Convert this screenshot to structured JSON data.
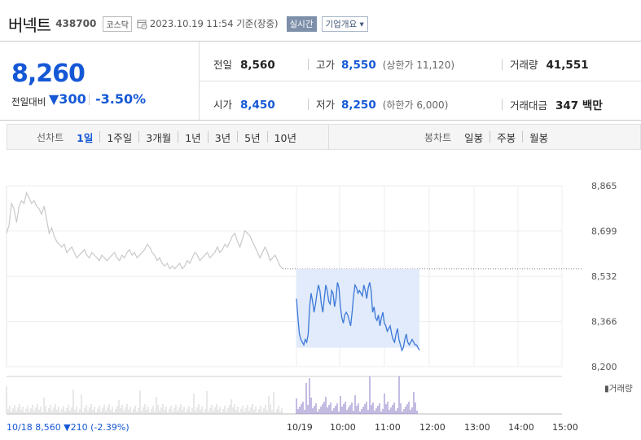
{
  "header": {
    "stock_name": "버넥트",
    "stock_code": "438700",
    "market": "코스닥",
    "datetime": "2023.10.19 11:54 기준(장중)",
    "realtime_label": "실시간",
    "company_label": "기업개요 ▾"
  },
  "price": {
    "current": "8,260",
    "diff_label": "전일대비",
    "diff_value": "▼300",
    "diff_percent": "-3.50%"
  },
  "stats": {
    "prev_close_label": "전일",
    "prev_close": "8,560",
    "high_label": "고가",
    "high": "8,550",
    "upper_limit": "(상한가 11,120)",
    "volume_label": "거래량",
    "volume": "41,551",
    "open_label": "시가",
    "open": "8,450",
    "low_label": "저가",
    "low": "8,250",
    "lower_limit": "(하한가 6,000)",
    "amount_label": "거래대금",
    "amount": "347 백만"
  },
  "line_chart_tabs": {
    "label": "선차트",
    "items": [
      "1일",
      "1주일",
      "3개월",
      "1년",
      "3년",
      "5년",
      "10년"
    ],
    "active": "1일"
  },
  "candle_chart_tabs": {
    "label": "봉차트",
    "items": [
      "일봉",
      "주봉",
      "월봉"
    ]
  },
  "colors": {
    "down": "#1558d6",
    "up": "#e0002a"
  },
  "chart_data": {
    "type": "line",
    "y_ticks": [
      "8,865",
      "8,699",
      "8,532",
      "8,366",
      "8,200"
    ],
    "ylim": [
      8200,
      8865
    ],
    "prev_close": 8560,
    "x_ticks": [
      "10/18",
      "10/19",
      "10:00",
      "11:00",
      "12:00",
      "13:00",
      "14:00",
      "15:00"
    ],
    "prev_day_caption": "10/18  8,560 ▼210 (-2.39%)",
    "volume_label": "거래량",
    "series": [
      {
        "values": [
          8690,
          8720,
          8800,
          8780,
          8730,
          8790,
          8810,
          8800,
          8840,
          8820,
          8800,
          8810,
          8790,
          8780,
          8760,
          8790,
          8740,
          8690,
          8710,
          8680,
          8660,
          8650,
          8640,
          8650,
          8620,
          8630,
          8640,
          8620,
          8600,
          8610,
          8620,
          8630,
          8610,
          8600,
          8620,
          8610,
          8600,
          8590,
          8610,
          8600,
          8590,
          8600,
          8610,
          8620,
          8600,
          8590,
          8610,
          8600,
          8620,
          8630,
          8610,
          8620,
          8600,
          8610,
          8620,
          8630,
          8650,
          8640,
          8620,
          8610,
          8590,
          8600,
          8580,
          8570,
          8580,
          8560,
          8570,
          8560,
          8570,
          8580,
          8560,
          8570,
          8590,
          8580,
          8600,
          8620,
          8610,
          8590,
          8600,
          8610,
          8620,
          8600,
          8610,
          8620,
          8640,
          8620,
          8630,
          8650,
          8640,
          8660,
          8680,
          8690,
          8660,
          8640,
          8670,
          8700,
          8690,
          8680,
          8660,
          8640,
          8620,
          8600,
          8620,
          8640,
          8620,
          8590,
          8600,
          8610,
          8590,
          8570,
          8560
        ],
        "color": "#c9c9c9"
      },
      {
        "values": [
          8450,
          8380,
          8320,
          8300,
          8290,
          8280,
          8300,
          8290,
          8320,
          8420,
          8470,
          8440,
          8400,
          8430,
          8470,
          8500,
          8480,
          8430,
          8400,
          8450,
          8500,
          8480,
          8440,
          8430,
          8480,
          8470,
          8420,
          8450,
          8510,
          8490,
          8420,
          8380,
          8360,
          8390,
          8400,
          8390,
          8370,
          8350,
          8400,
          8460,
          8500,
          8490,
          8470,
          8480,
          8470,
          8460,
          8500,
          8480,
          8450,
          8490,
          8510,
          8480,
          8400,
          8420,
          8380,
          8370,
          8390,
          8350,
          8380,
          8400,
          8360,
          8350,
          8330,
          8340,
          8350,
          8320,
          8300,
          8290,
          8320,
          8340,
          8300,
          8280,
          8260,
          8270,
          8300,
          8320,
          8290,
          8280,
          8290,
          8300,
          8290,
          8280,
          8280,
          8270,
          8260
        ],
        "color": "#3c78d8"
      }
    ]
  }
}
